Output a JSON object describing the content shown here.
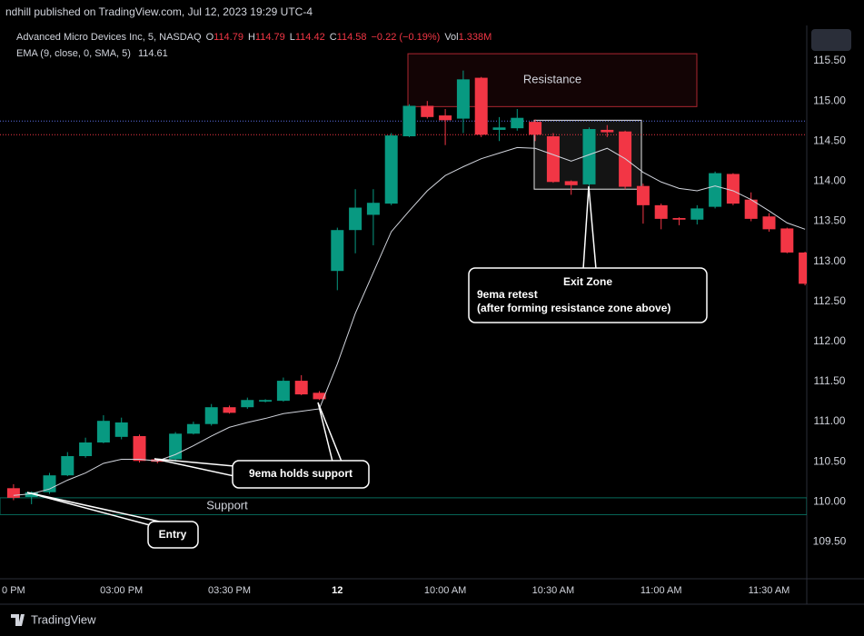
{
  "publisher": "ndhill published on TradingView.com, Jul 12, 2023 19:29 UTC-4",
  "footer": "TradingView",
  "chart_data": {
    "type": "candlestick",
    "title": "Advanced Micro Devices Inc, 5, NASDAQ",
    "ohlc_legend": [
      {
        "label": "O",
        "value": "114.79"
      },
      {
        "label": "H",
        "value": "114.79"
      },
      {
        "label": "L",
        "value": "114.42"
      },
      {
        "label": "C",
        "value": "114.58"
      },
      {
        "label": "",
        "value": "−0.22 (−0.19%)"
      },
      {
        "label": "Vol",
        "value": "1.338M"
      }
    ],
    "up_color": "#089981",
    "down_color": "#f23645",
    "categories": [
      "0 PM",
      null,
      null,
      null,
      null,
      null,
      "03:00 PM",
      null,
      null,
      null,
      null,
      null,
      "03:30 PM",
      null,
      null,
      null,
      null,
      null,
      "12",
      null,
      null,
      null,
      null,
      null,
      "10:00 AM",
      null,
      null,
      null,
      null,
      null,
      "10:30 AM",
      null,
      null,
      null,
      null,
      null,
      "11:00 AM",
      null,
      null,
      null,
      null,
      null,
      "11:30 AM",
      null,
      null
    ],
    "open": [
      110.17,
      110.06,
      110.12,
      110.33,
      110.57,
      110.74,
      110.81,
      110.82,
      110.53,
      110.53,
      110.85,
      110.97,
      111.18,
      111.18,
      111.25,
      111.26,
      111.51,
      111.36,
      112.88,
      113.39,
      113.58,
      113.72,
      114.56,
      114.94,
      114.82,
      114.78,
      115.29,
      114.64,
      114.66,
      114.74,
      114.56,
      114.0,
      113.96,
      114.64,
      114.62,
      113.94,
      113.7,
      113.54,
      113.52,
      113.68,
      114.09,
      113.77,
      113.56,
      113.41,
      113.11
    ],
    "high": [
      110.22,
      110.13,
      110.36,
      110.62,
      110.8,
      111.08,
      111.05,
      110.84,
      110.54,
      110.87,
      111.0,
      111.22,
      111.2,
      111.3,
      111.28,
      111.55,
      111.58,
      111.38,
      113.42,
      113.9,
      113.9,
      114.6,
      114.96,
      115.0,
      114.9,
      115.38,
      115.3,
      114.8,
      114.9,
      114.77,
      114.6,
      114.01,
      114.67,
      114.7,
      114.63,
      113.97,
      113.72,
      113.55,
      113.7,
      114.12,
      114.1,
      113.86,
      113.6,
      113.42,
      113.12
    ],
    "low": [
      110.02,
      109.97,
      110.1,
      110.32,
      110.55,
      110.73,
      110.78,
      110.49,
      110.48,
      110.5,
      110.84,
      110.95,
      111.1,
      111.16,
      111.24,
      111.25,
      111.33,
      111.27,
      112.64,
      113.1,
      113.2,
      113.7,
      114.55,
      114.78,
      114.45,
      114.6,
      114.55,
      114.5,
      114.63,
      114.5,
      113.98,
      113.83,
      113.94,
      114.55,
      113.9,
      113.47,
      113.4,
      113.45,
      113.46,
      113.66,
      113.7,
      113.5,
      113.37,
      113.1,
      112.7
    ],
    "close": [
      110.05,
      110.12,
      110.33,
      110.57,
      110.74,
      111.01,
      110.99,
      110.51,
      110.5,
      110.85,
      110.97,
      111.18,
      111.11,
      111.27,
      111.27,
      111.51,
      111.34,
      111.28,
      113.39,
      113.67,
      113.73,
      114.57,
      114.94,
      114.8,
      114.76,
      115.27,
      114.58,
      114.67,
      114.79,
      114.58,
      113.99,
      113.95,
      114.65,
      114.61,
      113.93,
      113.7,
      113.53,
      113.52,
      113.66,
      114.1,
      113.72,
      113.53,
      113.4,
      113.11,
      112.72
    ],
    "series": [
      {
        "name": "EMA (9, close, 0, SMA, 5)",
        "value_label": "114.61",
        "color": "#d1d4dc",
        "values": [
          110.08,
          110.1,
          110.16,
          110.27,
          110.36,
          110.48,
          110.53,
          110.53,
          110.51,
          110.59,
          110.7,
          110.82,
          110.93,
          110.99,
          111.04,
          111.1,
          111.13,
          111.16,
          111.72,
          112.35,
          112.86,
          113.37,
          113.63,
          113.88,
          114.07,
          114.18,
          114.28,
          114.35,
          114.42,
          114.41,
          114.33,
          114.25,
          114.33,
          114.41,
          114.28,
          114.11,
          113.99,
          113.91,
          113.88,
          113.94,
          113.88,
          113.77,
          113.63,
          113.48,
          113.4
        ]
      }
    ],
    "price_lines": [
      {
        "value": 114.75,
        "color": "#5b6fe6"
      },
      {
        "value": 114.58,
        "color": "#f23645"
      }
    ],
    "zones": [
      {
        "text": "Resistance",
        "top": 115.59,
        "bottom": 114.93,
        "color": "#f23645"
      },
      {
        "top": 114.76,
        "bottom": 113.9,
        "color": "#ffffff"
      },
      {
        "text": "Support",
        "top": 110.05,
        "bottom": 109.84,
        "color": "#089981"
      }
    ],
    "callouts": [
      {
        "lines": [
          "Exit Zone",
          "9ema retest",
          "(after forming resistance zone above)"
        ]
      },
      {
        "lines": [
          "9ema holds support"
        ]
      },
      {
        "lines": [
          "Entry"
        ]
      }
    ],
    "ylim": [
      109.04,
      115.92
    ],
    "yticks": [
      {
        "value": 109.5,
        "label": "109.50"
      },
      {
        "value": 110,
        "label": "110.00"
      },
      {
        "value": 110.5,
        "label": "110.50"
      },
      {
        "value": 111,
        "label": "111.00"
      },
      {
        "value": 111.5,
        "label": "111.50"
      },
      {
        "value": 112,
        "label": "112.00"
      },
      {
        "value": 112.5,
        "label": "112.50"
      },
      {
        "value": 113,
        "label": "113.00"
      },
      {
        "value": 113.5,
        "label": "113.50"
      },
      {
        "value": 114,
        "label": "114.00"
      },
      {
        "value": 114.5,
        "label": "114.50"
      },
      {
        "value": 115,
        "label": "115.00"
      },
      {
        "value": 115.5,
        "label": "115.50"
      }
    ],
    "grid": false
  }
}
